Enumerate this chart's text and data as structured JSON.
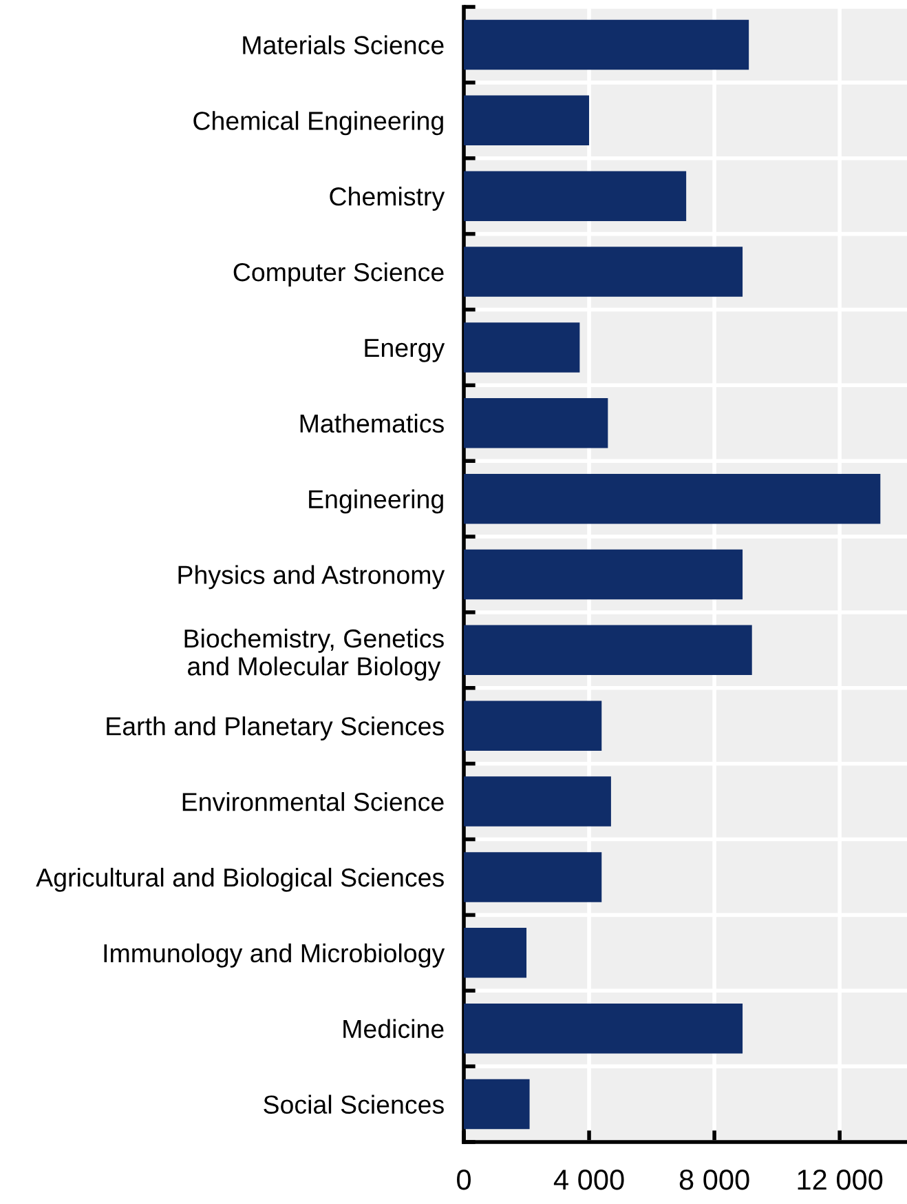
{
  "chart_data": {
    "type": "bar",
    "orientation": "horizontal",
    "categories": [
      "Materials Science",
      "Chemical Engineering",
      "Chemistry",
      "Computer Science",
      "Energy",
      "Mathematics",
      "Engineering",
      "Physics and Astronomy",
      "Biochemistry, Genetics\nand Molecular Biology",
      "Earth and Planetary Sciences",
      "Environmental Science",
      "Agricultural and Biological Sciences",
      "Immunology and Microbiology",
      "Medicine",
      "Social Sciences"
    ],
    "values": [
      9100,
      4000,
      7100,
      8900,
      3700,
      4600,
      13300,
      8900,
      9200,
      4400,
      4700,
      4400,
      2000,
      8900,
      2100
    ],
    "color": "#102d69",
    "xlim": [
      0,
      14150
    ],
    "xticks": [
      0,
      {
        "value": 4000,
        "label": "4 000"
      },
      {
        "value": 8000,
        "label": "8 000"
      },
      {
        "value": 12000,
        "label": "12 000"
      }
    ],
    "grid": true
  }
}
